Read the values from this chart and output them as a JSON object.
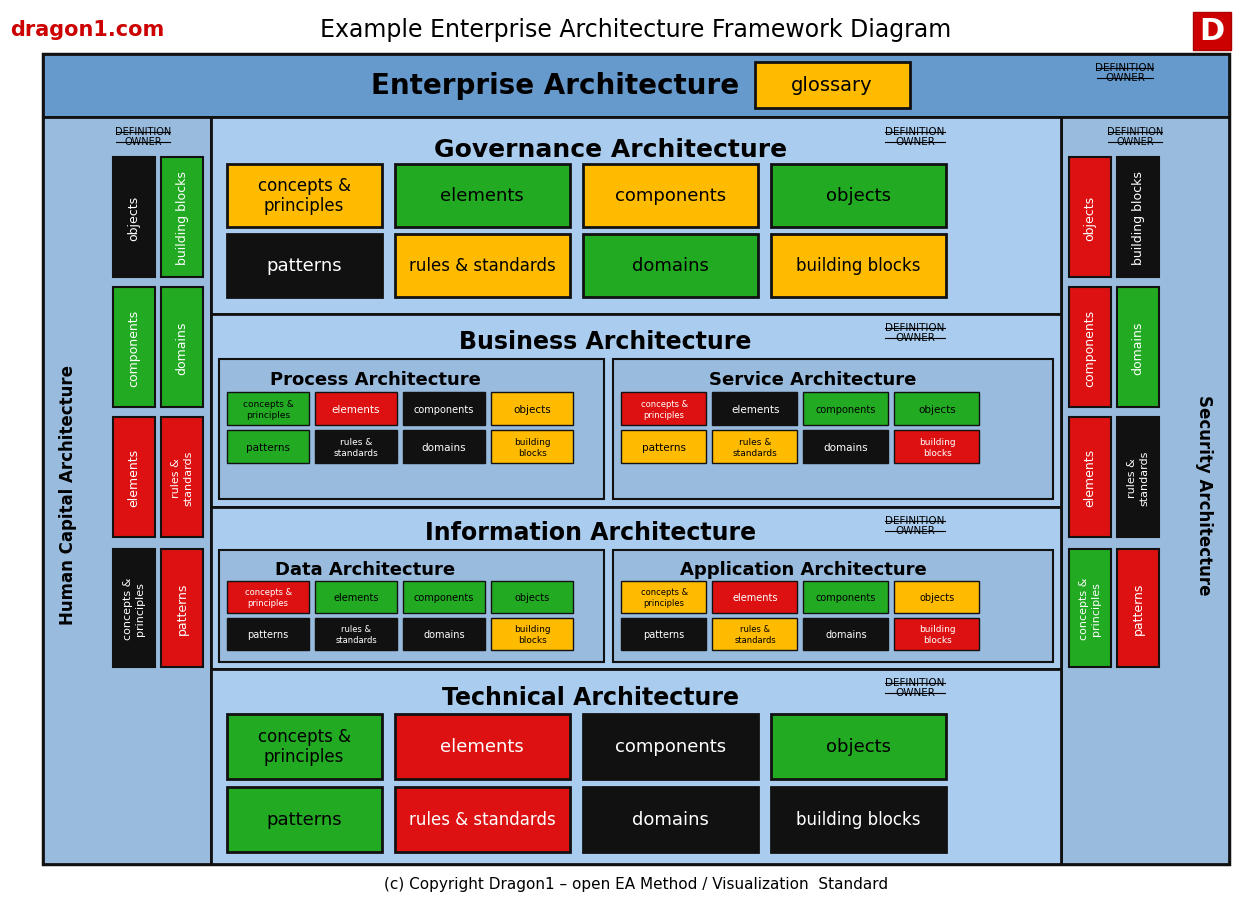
{
  "title": "Example Enterprise Architecture Framework Diagram",
  "watermark": "dragon1.com",
  "copyright": "(c) Copyright Dragon1 – open EA Method / Visualization  Standard",
  "bg_color": "#6699CC",
  "panel_bg": "#99BBDD",
  "inner_bg": "#AACCEE",
  "colors": {
    "yellow": "#FFBB00",
    "green": "#22AA22",
    "black": "#111111",
    "red": "#DD1111",
    "white": "#FFFFFF"
  }
}
